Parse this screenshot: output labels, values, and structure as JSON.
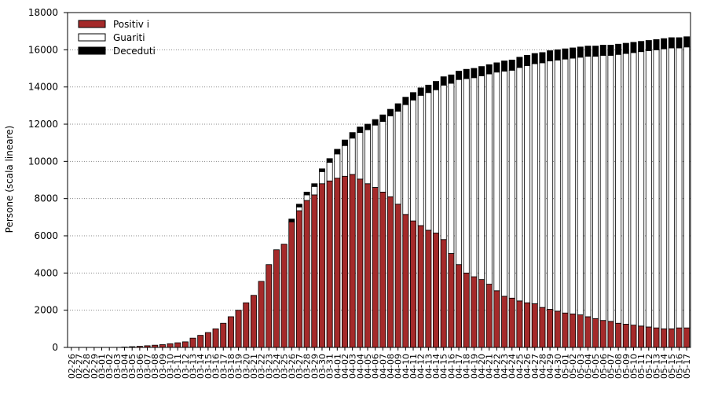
{
  "chart_data": {
    "type": "bar",
    "stacked": true,
    "ylabel": "Persone (scala lineare)",
    "ylim": [
      0,
      18000
    ],
    "yticks": [
      0,
      2000,
      4000,
      6000,
      8000,
      10000,
      12000,
      14000,
      16000,
      18000
    ],
    "grid": "horizontal dotted",
    "legend_position": "top-left",
    "categories": [
      "02-26",
      "02-27",
      "02-28",
      "02-29",
      "03-01",
      "03-02",
      "03-03",
      "03-04",
      "03-05",
      "03-06",
      "03-07",
      "03-08",
      "03-09",
      "03-10",
      "03-11",
      "03-12",
      "03-13",
      "03-14",
      "03-15",
      "03-16",
      "03-17",
      "03-18",
      "03-19",
      "03-20",
      "03-21",
      "03-22",
      "03-23",
      "03-24",
      "03-25",
      "03-26",
      "03-27",
      "03-28",
      "03-29",
      "03-30",
      "03-31",
      "04-01",
      "04-02",
      "04-03",
      "04-04",
      "04-05",
      "04-06",
      "04-07",
      "04-08",
      "04-09",
      "04-10",
      "04-11",
      "04-12",
      "04-13",
      "04-14",
      "04-15",
      "04-16",
      "04-17",
      "04-18",
      "04-19",
      "04-20",
      "04-21",
      "04-22",
      "04-23",
      "04-24",
      "04-25",
      "04-26",
      "04-27",
      "04-28",
      "04-29",
      "04-30",
      "05-01",
      "05-02",
      "05-03",
      "05-04",
      "05-05",
      "05-06",
      "05-07",
      "05-08",
      "05-09",
      "05-10",
      "05-11",
      "05-12",
      "05-13",
      "05-14",
      "05-15",
      "05-16",
      "05-17"
    ],
    "series": [
      {
        "name": "Positiv i",
        "color": "#a52a2a",
        "values": [
          0,
          0,
          0,
          0,
          0,
          0,
          0,
          20,
          40,
          60,
          90,
          120,
          150,
          200,
          250,
          300,
          500,
          650,
          800,
          1000,
          1300,
          1650,
          2000,
          2400,
          2800,
          3550,
          4450,
          5250,
          5550,
          6750,
          7350,
          7900,
          8200,
          8800,
          8950,
          9100,
          9200,
          9300,
          9050,
          8800,
          8600,
          8350,
          8100,
          7700,
          7150,
          6800,
          6550,
          6300,
          6150,
          5800,
          5050,
          4450,
          4000,
          3800,
          3650,
          3400,
          3050,
          2750,
          2650,
          2500,
          2400,
          2350,
          2150,
          2050,
          1950,
          1850,
          1800,
          1750,
          1650,
          1550,
          1450,
          1400,
          1300,
          1250,
          1200,
          1150,
          1100,
          1050,
          1000,
          1000,
          1050,
          1050
        ]
      },
      {
        "name": "Guariti",
        "color": "#ffffff",
        "values": [
          0,
          0,
          0,
          0,
          0,
          0,
          0,
          0,
          0,
          0,
          0,
          0,
          0,
          0,
          0,
          0,
          0,
          0,
          0,
          0,
          0,
          0,
          0,
          0,
          0,
          0,
          0,
          0,
          0,
          0,
          200,
          300,
          450,
          650,
          1000,
          1300,
          1650,
          1950,
          2500,
          2900,
          3350,
          3800,
          4350,
          5000,
          5900,
          6500,
          7000,
          7400,
          7700,
          8300,
          9150,
          9950,
          10450,
          10700,
          10950,
          11300,
          11750,
          12100,
          12250,
          12550,
          12750,
          12900,
          13150,
          13350,
          13500,
          13650,
          13750,
          13850,
          14000,
          14100,
          14250,
          14300,
          14450,
          14550,
          14650,
          14750,
          14850,
          14950,
          15050,
          15100,
          15050,
          15100
        ]
      },
      {
        "name": "Deceduti",
        "color": "#000000",
        "values": [
          0,
          0,
          0,
          0,
          0,
          0,
          0,
          0,
          0,
          0,
          0,
          0,
          0,
          0,
          0,
          0,
          0,
          0,
          0,
          0,
          0,
          0,
          0,
          0,
          0,
          0,
          0,
          0,
          0,
          150,
          150,
          150,
          150,
          150,
          200,
          250,
          300,
          300,
          300,
          300,
          300,
          350,
          350,
          400,
          400,
          400,
          400,
          400,
          450,
          450,
          450,
          450,
          500,
          500,
          500,
          500,
          500,
          550,
          550,
          550,
          550,
          550,
          550,
          550,
          550,
          550,
          550,
          550,
          550,
          550,
          550,
          550,
          550,
          550,
          550,
          550,
          550,
          550,
          550,
          550,
          550,
          550
        ]
      }
    ]
  }
}
